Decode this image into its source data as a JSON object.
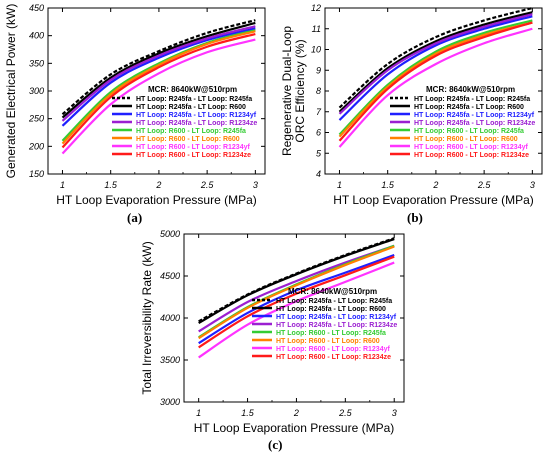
{
  "captions": [
    "(a)",
    "(b)",
    "(c)"
  ],
  "legend_title": "MCR: 8640kW@510rpm",
  "chart_data": [
    {
      "type": "line",
      "panel": "(a)",
      "xlabel": "HT Loop Evaporation Pressure (MPa)",
      "ylabel": "Generated Electrical Power (kW)",
      "xlim": [
        0.85,
        3.1
      ],
      "ylim": [
        150,
        450
      ],
      "xticks": [
        1,
        1.5,
        2,
        2.5,
        3
      ],
      "xtick_labels": [
        "1",
        "1.5",
        "2",
        "2.5",
        "3"
      ],
      "yticks": [
        150,
        200,
        250,
        300,
        350,
        400,
        450
      ],
      "ytick_labels": [
        "150",
        "200",
        "250",
        "300",
        "350",
        "400",
        "450"
      ],
      "legend_title": "MCR: 8640kW@510rpm",
      "legend_placement": "bottom-right",
      "x": [
        1,
        1.5,
        2,
        2.5,
        3
      ],
      "series": [
        {
          "name": "HT Loop: R245fa - LT Loop: R245fa",
          "color": "#000000",
          "dashed": true,
          "values": [
            258,
            330,
            372,
            405,
            428
          ]
        },
        {
          "name": "HT Loop: R245fa - LT Loop: R600",
          "color": "#000000",
          "dashed": false,
          "values": [
            252,
            324,
            368,
            399,
            423
          ]
        },
        {
          "name": "HT Loop: R245fa - LT Loop: R1234yf",
          "color": "#1f1fff",
          "dashed": false,
          "values": [
            237,
            315,
            360,
            392,
            413
          ]
        },
        {
          "name": "HT Loop: R245fa - LT Loop: R1234ze",
          "color": "#9b1fd1",
          "dashed": false,
          "values": [
            246,
            320,
            364,
            395,
            417
          ]
        },
        {
          "name": "HT Loop: R600 - LT Loop: R245fa",
          "color": "#33cc33",
          "dashed": false,
          "values": [
            210,
            298,
            350,
            387,
            410
          ]
        },
        {
          "name": "HT Loop: R600 - LT Loop: R600",
          "color": "#ff8000",
          "dashed": false,
          "values": [
            205,
            294,
            347,
            385,
            408
          ]
        },
        {
          "name": "HT Loop: R600 - LT Loop: R1234yf",
          "color": "#ff33ff",
          "dashed": false,
          "values": [
            187,
            276,
            332,
            370,
            393
          ]
        },
        {
          "name": "HT Loop: R600 - LT Loop: R1234ze",
          "color": "#ff1a1a",
          "dashed": false,
          "values": [
            198,
            289,
            343,
            380,
            403
          ]
        }
      ]
    },
    {
      "type": "line",
      "panel": "(b)",
      "xlabel": "HT Loop Evaporation Pressure (MPa)",
      "ylabel": "Regenerative Dual-Loop ORC Efficiency (%)",
      "xlim": [
        0.85,
        3.1
      ],
      "ylim": [
        4,
        12
      ],
      "xticks": [
        1,
        1.5,
        2,
        2.5,
        3
      ],
      "xtick_labels": [
        "1",
        "1.5",
        "2",
        "2.5",
        "3"
      ],
      "yticks": [
        4,
        5,
        6,
        7,
        8,
        9,
        10,
        11,
        12
      ],
      "ytick_labels": [
        "4",
        "5",
        "6",
        "7",
        "8",
        "9",
        "10",
        "11",
        "12"
      ],
      "legend_title": "MCR: 8640kW@510rpm",
      "legend_placement": "bottom-right",
      "x": [
        1,
        1.5,
        2,
        2.5,
        3
      ],
      "series": [
        {
          "name": "HT Loop: R245fa - LT Loop: R245fa",
          "color": "#000000",
          "dashed": true,
          "values": [
            7.2,
            9.3,
            10.6,
            11.4,
            12.0
          ]
        },
        {
          "name": "HT Loop: R245fa - LT Loop: R600",
          "color": "#000000",
          "dashed": false,
          "values": [
            7.0,
            9.1,
            10.4,
            11.2,
            11.8
          ]
        },
        {
          "name": "HT Loop: R245fa - LT Loop: R1234yf",
          "color": "#1f1fff",
          "dashed": false,
          "values": [
            6.6,
            8.8,
            10.2,
            11.0,
            11.6
          ]
        },
        {
          "name": "HT Loop: R245fa - LT Loop: R1234ze",
          "color": "#9b1fd1",
          "dashed": false,
          "values": [
            6.9,
            9.0,
            10.3,
            11.1,
            11.7
          ]
        },
        {
          "name": "HT Loop: R600 - LT Loop: R245fa",
          "color": "#33cc33",
          "dashed": false,
          "values": [
            5.9,
            8.3,
            9.9,
            10.8,
            11.4
          ]
        },
        {
          "name": "HT Loop: R600 - LT Loop: R600",
          "color": "#ff8000",
          "dashed": false,
          "values": [
            5.8,
            8.2,
            9.8,
            10.7,
            11.3
          ]
        },
        {
          "name": "HT Loop: R600 - LT Loop: R1234yf",
          "color": "#ff33ff",
          "dashed": false,
          "values": [
            5.3,
            7.8,
            9.3,
            10.3,
            11.0
          ]
        },
        {
          "name": "HT Loop: R600 - LT Loop: R1234ze",
          "color": "#ff1a1a",
          "dashed": false,
          "values": [
            5.6,
            8.1,
            9.7,
            10.6,
            11.3
          ]
        }
      ]
    },
    {
      "type": "line",
      "panel": "(c)",
      "xlabel": "HT Loop Evaporation Pressure (MPa)",
      "ylabel": "Total Irreversibility Rate (kW)",
      "xlim": [
        0.85,
        3.1
      ],
      "ylim": [
        3000,
        5000
      ],
      "xticks": [
        1,
        1.5,
        2,
        2.5,
        3
      ],
      "xtick_labels": [
        "1",
        "1.5",
        "2",
        "2.5",
        "3"
      ],
      "yticks": [
        3000,
        3500,
        4000,
        4500,
        5000
      ],
      "ytick_labels": [
        "3000",
        "3500",
        "4000",
        "4500",
        "5000"
      ],
      "legend_title": "MCR: 8640kW@510rpm",
      "legend_placement": "bottom-right",
      "x": [
        1,
        1.5,
        2,
        2.5,
        3
      ],
      "series": [
        {
          "name": "HT Loop: R245fa - LT Loop: R245fa",
          "color": "#000000",
          "dashed": true,
          "values": [
            3960,
            4280,
            4530,
            4750,
            4950
          ]
        },
        {
          "name": "HT Loop: R245fa - LT Loop: R600",
          "color": "#000000",
          "dashed": false,
          "values": [
            3940,
            4270,
            4520,
            4740,
            4940
          ]
        },
        {
          "name": "HT Loop: R245fa - LT Loop: R1234yf",
          "color": "#1f1fff",
          "dashed": false,
          "values": [
            3700,
            4060,
            4330,
            4540,
            4750
          ]
        },
        {
          "name": "HT Loop: R245fa - LT Loop: R1234ze",
          "color": "#9b1fd1",
          "dashed": false,
          "values": [
            3840,
            4190,
            4440,
            4660,
            4860
          ]
        },
        {
          "name": "HT Loop: R600 - LT Loop: R245fa",
          "color": "#33cc33",
          "dashed": false,
          "values": [
            3770,
            4130,
            4400,
            4640,
            4860
          ]
        },
        {
          "name": "HT Loop: R600 - LT Loop: R600",
          "color": "#ff8000",
          "dashed": false,
          "values": [
            3760,
            4120,
            4390,
            4630,
            4850
          ]
        },
        {
          "name": "HT Loop: R600 - LT Loop: R1234yf",
          "color": "#ff33ff",
          "dashed": false,
          "values": [
            3530,
            3920,
            4200,
            4430,
            4660
          ]
        },
        {
          "name": "HT Loop: R600 - LT Loop: R1234ze",
          "color": "#ff1a1a",
          "dashed": false,
          "values": [
            3650,
            4020,
            4290,
            4510,
            4730
          ]
        }
      ]
    }
  ]
}
